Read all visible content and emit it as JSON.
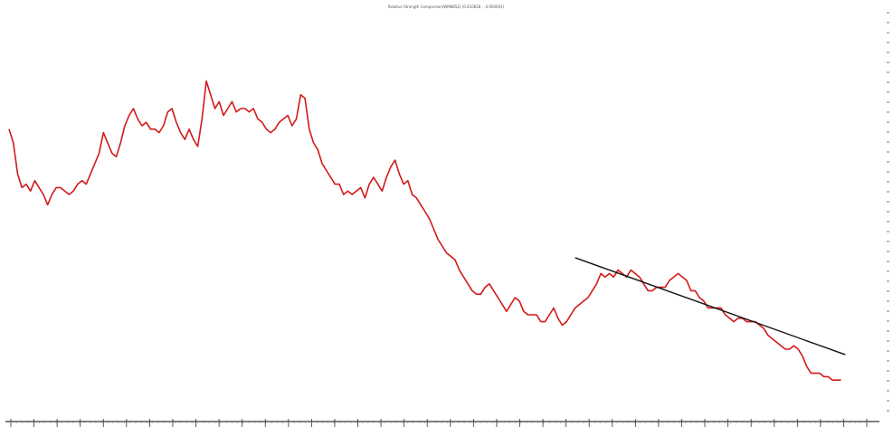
{
  "chart_data": {
    "type": "line",
    "title": "Relative Strength Comparison(WM8852) (0.010828 , -0.000001)",
    "xlabel": "",
    "ylabel": "",
    "grid": false,
    "legend": "none",
    "x_ticks_count": 38,
    "ylim": [
      0,
      100
    ],
    "series": [
      {
        "color": "#d11a1a",
        "values": [
          74,
          70,
          61,
          57,
          58,
          56,
          59,
          57,
          55,
          52,
          55,
          57,
          57,
          56,
          55,
          56,
          58,
          59,
          58,
          61,
          64,
          67,
          73,
          70,
          67,
          66,
          70,
          75,
          78,
          80,
          77,
          75,
          76,
          74,
          74,
          73,
          75,
          79,
          80,
          76,
          73,
          71,
          74,
          71,
          69,
          77,
          88,
          84,
          80,
          82,
          78,
          80,
          82,
          79,
          80,
          80,
          79,
          80,
          77,
          76,
          74,
          73,
          74,
          76,
          77,
          78,
          75,
          77,
          84,
          83,
          74,
          70,
          68,
          64,
          62,
          60,
          58,
          58,
          55,
          56,
          55,
          56,
          57,
          54,
          58,
          60,
          58,
          56,
          60,
          63,
          65,
          61,
          58,
          59,
          55,
          54,
          52,
          50,
          48,
          45,
          42,
          40,
          38,
          37,
          36,
          33,
          31,
          29,
          27,
          26,
          26,
          28,
          29,
          27,
          25,
          23,
          21,
          23,
          25,
          24,
          21,
          20,
          20,
          20,
          18,
          18,
          20,
          22,
          19,
          17,
          18,
          20,
          22,
          23,
          24,
          25,
          27,
          29,
          32,
          31,
          32,
          31,
          33,
          32,
          31,
          33,
          32,
          31,
          29,
          27,
          27,
          28,
          28,
          28,
          30,
          31,
          32,
          31,
          30,
          27,
          27,
          25,
          24,
          22,
          22,
          22,
          22,
          20,
          19,
          18,
          19,
          19,
          18,
          18,
          18,
          17,
          16,
          14,
          13,
          12,
          11,
          10,
          10,
          11,
          10,
          8,
          5,
          3,
          3,
          3,
          2,
          2,
          1,
          1,
          1
        ]
      },
      {
        "color": "#111111",
        "points": [
          [
            132.0,
            36.6
          ],
          [
            195.0,
            8.4
          ]
        ]
      }
    ]
  }
}
